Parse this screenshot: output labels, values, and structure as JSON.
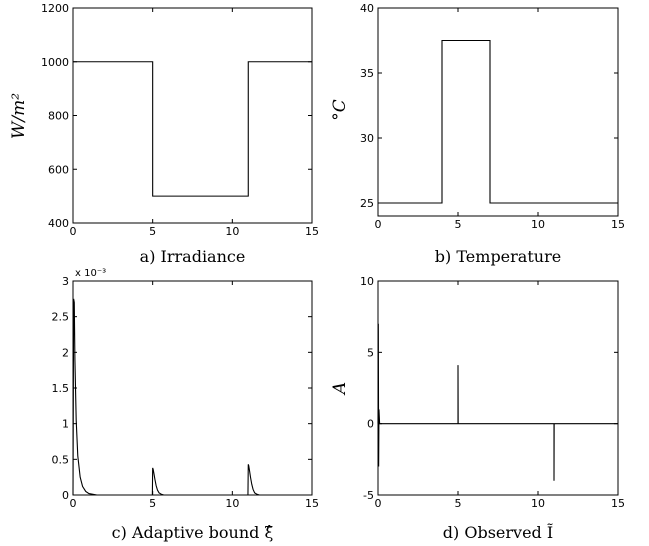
{
  "chart_data": [
    {
      "type": "line",
      "caption": "a) Irradiance",
      "ylabel": "W/m²",
      "xlim": [
        0,
        15
      ],
      "ylim": [
        400,
        1200
      ],
      "xticks": [
        0,
        5,
        10,
        15
      ],
      "yticks": [
        400,
        600,
        800,
        1000,
        1200
      ],
      "grid": false,
      "series": [
        {
          "x": [
            0,
            5,
            5,
            11,
            11,
            15
          ],
          "y": [
            1000,
            1000,
            500,
            500,
            1000,
            1000
          ]
        }
      ]
    },
    {
      "type": "line",
      "caption": "b) Temperature",
      "ylabel": "°C",
      "xlim": [
        0,
        15
      ],
      "ylim": [
        24,
        40
      ],
      "xticks": [
        0,
        5,
        10,
        15
      ],
      "yticks": [
        25,
        30,
        35,
        40
      ],
      "grid": false,
      "series": [
        {
          "x": [
            0,
            4,
            4,
            7,
            7,
            15
          ],
          "y": [
            25,
            25,
            37.5,
            37.5,
            25,
            25
          ]
        }
      ]
    },
    {
      "type": "line",
      "caption": "c) Adaptive bound ξ̂",
      "ylabel": "",
      "multiplier": "x 10⁻³",
      "xlim": [
        0,
        15
      ],
      "ylim": [
        0,
        3
      ],
      "xticks": [
        0,
        5,
        10,
        15
      ],
      "yticks": [
        0,
        0.5,
        1,
        1.5,
        2,
        2.5,
        3
      ],
      "grid": false,
      "series": [
        {
          "x": [
            0,
            0.04,
            0.08,
            0.12,
            0.2,
            0.3,
            0.45,
            0.6,
            0.8,
            1.0,
            1.5,
            4.98,
            5.0,
            5.03,
            5.08,
            5.14,
            5.22,
            5.3,
            5.4,
            5.55,
            5.7,
            10.98,
            11.0,
            11.03,
            11.08,
            11.14,
            11.22,
            11.3,
            11.4,
            11.55,
            11.7,
            15
          ],
          "y": [
            0,
            2.75,
            2.7,
            1.9,
            1.05,
            0.55,
            0.25,
            0.12,
            0.05,
            0.02,
            0,
            0,
            0.38,
            0.36,
            0.3,
            0.22,
            0.13,
            0.07,
            0.03,
            0.01,
            0,
            0,
            0.43,
            0.41,
            0.34,
            0.25,
            0.15,
            0.08,
            0.03,
            0.01,
            0,
            0
          ]
        }
      ]
    },
    {
      "type": "line",
      "caption": "d) Observed Ĩ",
      "ylabel": "A",
      "xlim": [
        0,
        15
      ],
      "ylim": [
        -5,
        10
      ],
      "xticks": [
        0,
        5,
        10,
        15
      ],
      "yticks": [
        -5,
        0,
        5,
        10
      ],
      "grid": false,
      "series": [
        {
          "x": [
            0,
            0.02,
            0.04,
            0.06,
            0.1,
            0.2,
            3,
            5,
            5,
            5.01,
            5.1,
            11,
            11,
            11.01,
            11.1,
            15
          ],
          "y": [
            0,
            7,
            -3,
            1,
            0,
            0,
            0,
            0,
            4.1,
            0,
            0,
            0,
            -4,
            0,
            0,
            0
          ]
        }
      ]
    }
  ]
}
